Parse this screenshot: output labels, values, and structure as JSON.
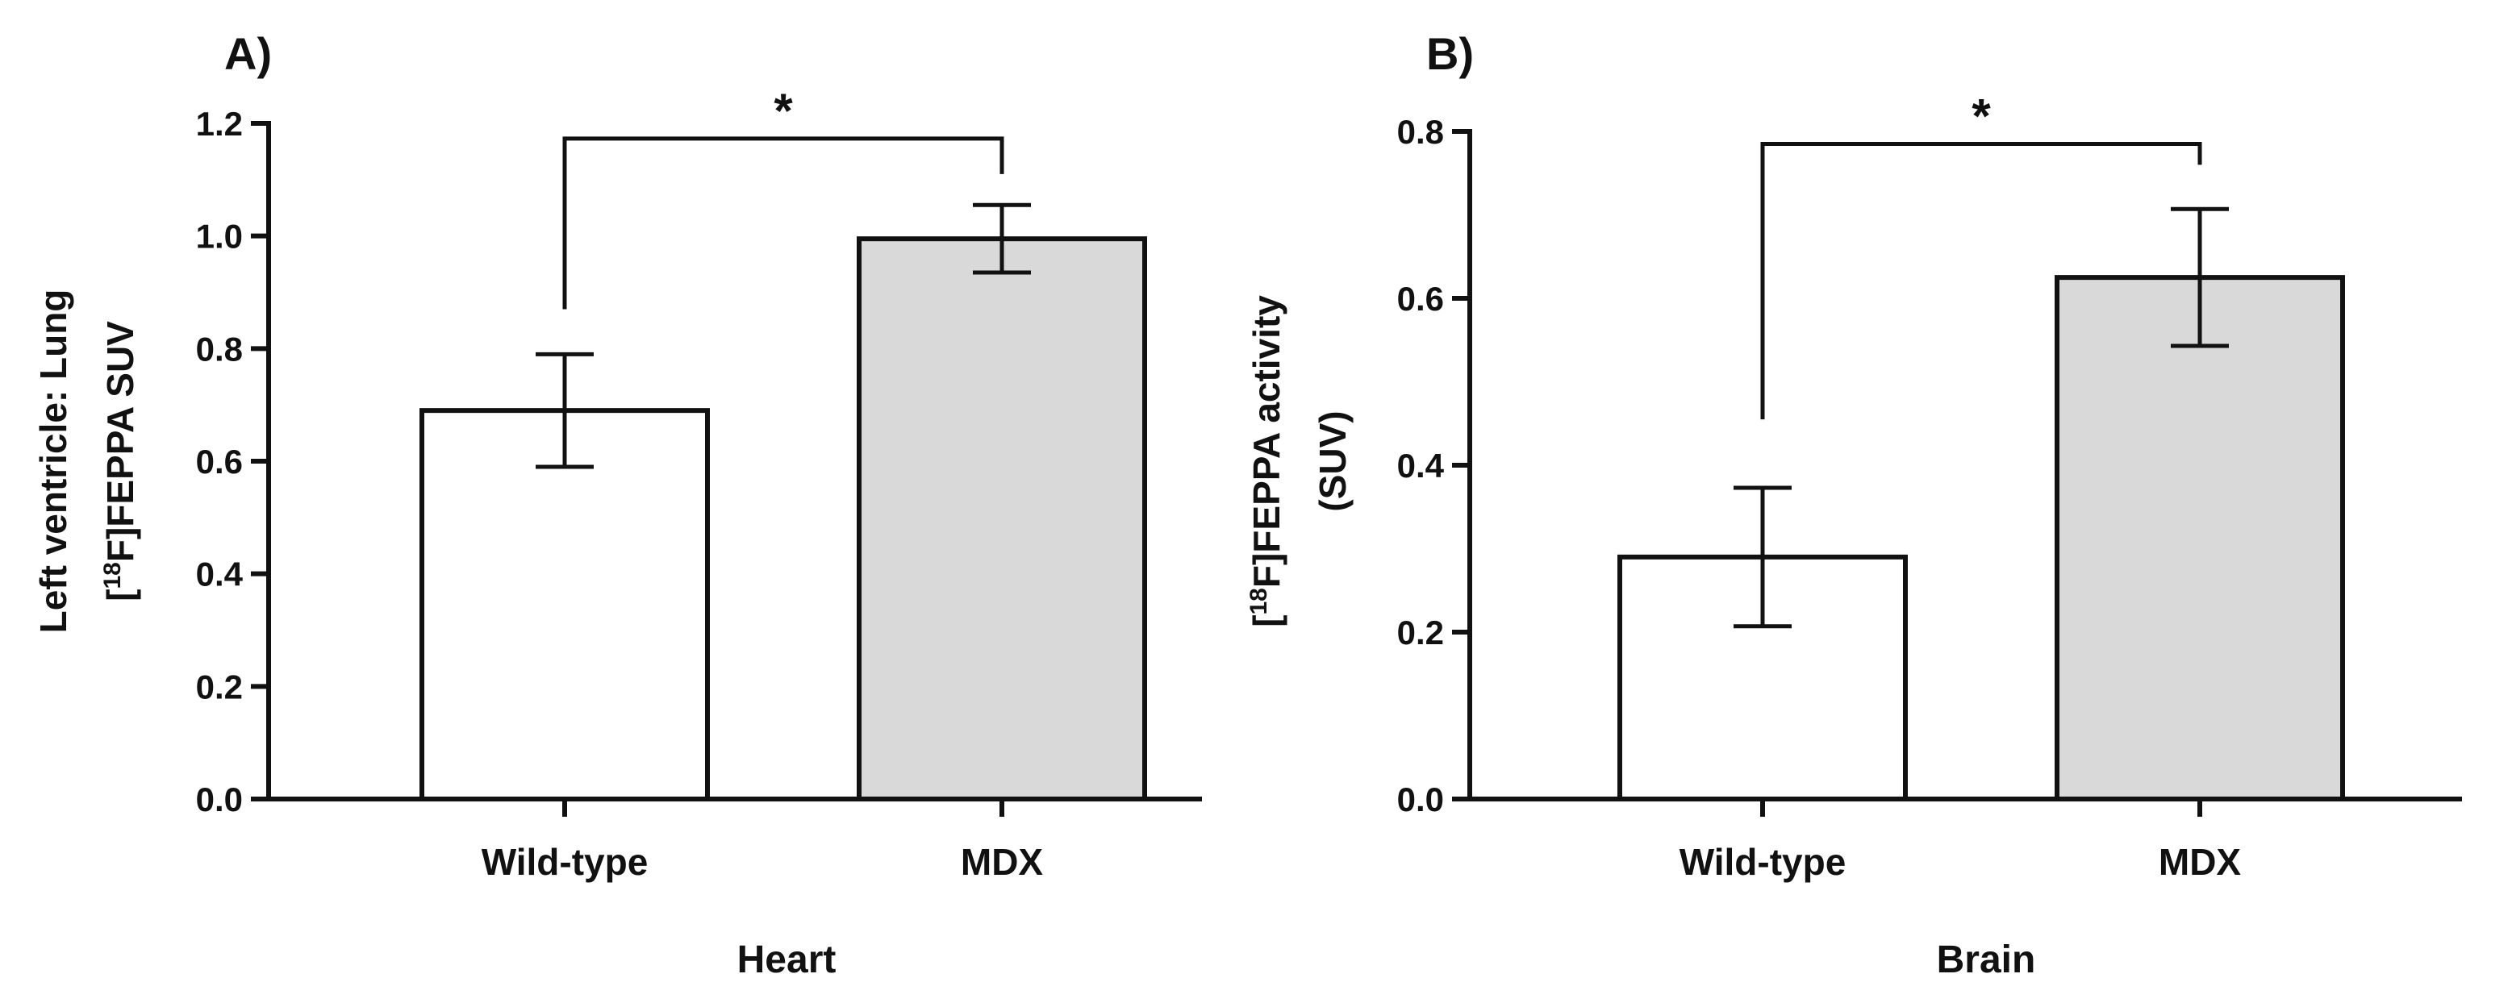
{
  "chart_data": [
    {
      "type": "bar",
      "panel": "A)",
      "title": "",
      "categories": [
        "Wild-type",
        "MDX"
      ],
      "values": [
        0.69,
        0.995
      ],
      "errors": [
        0.1,
        0.06
      ],
      "bar_colors": [
        "#ffffff",
        "#d9d9d9"
      ],
      "xlabel": "Heart",
      "ylabel_line1": "Left ventricle: Lung",
      "ylabel_line2": {
        "pre": "[",
        "sup": "18",
        "post": "F]FEPPA SUV"
      },
      "ylim": [
        0,
        1.2
      ],
      "yticks": [
        0.0,
        0.2,
        0.4,
        0.6,
        0.8,
        1.0,
        1.2
      ],
      "ytick_labels": [
        "0.0",
        "0.2",
        "0.4",
        "0.6",
        "0.8",
        "1.0",
        "1.2"
      ],
      "significance": {
        "label": "*",
        "left_start": 0.87,
        "bracket_top": 1.173,
        "right_end": 1.11
      }
    },
    {
      "type": "bar",
      "panel": "B)",
      "title": "",
      "categories": [
        "Wild-type",
        "MDX"
      ],
      "values": [
        0.29,
        0.625
      ],
      "errors": [
        0.083,
        0.082
      ],
      "bar_colors": [
        "#ffffff",
        "#d9d9d9"
      ],
      "xlabel": "Brain",
      "ylabel_line1": {
        "pre": "[",
        "sup": "18",
        "post": "F]FEPPA activity"
      },
      "ylabel_line2": "(SUV)",
      "ylim": [
        0,
        0.8
      ],
      "yticks": [
        0.0,
        0.2,
        0.4,
        0.6,
        0.8
      ],
      "ytick_labels": [
        "0.0",
        "0.2",
        "0.4",
        "0.6",
        "0.8"
      ],
      "significance": {
        "label": "*",
        "left_start": 0.455,
        "bracket_top": 0.785,
        "right_end": 0.76
      }
    }
  ]
}
